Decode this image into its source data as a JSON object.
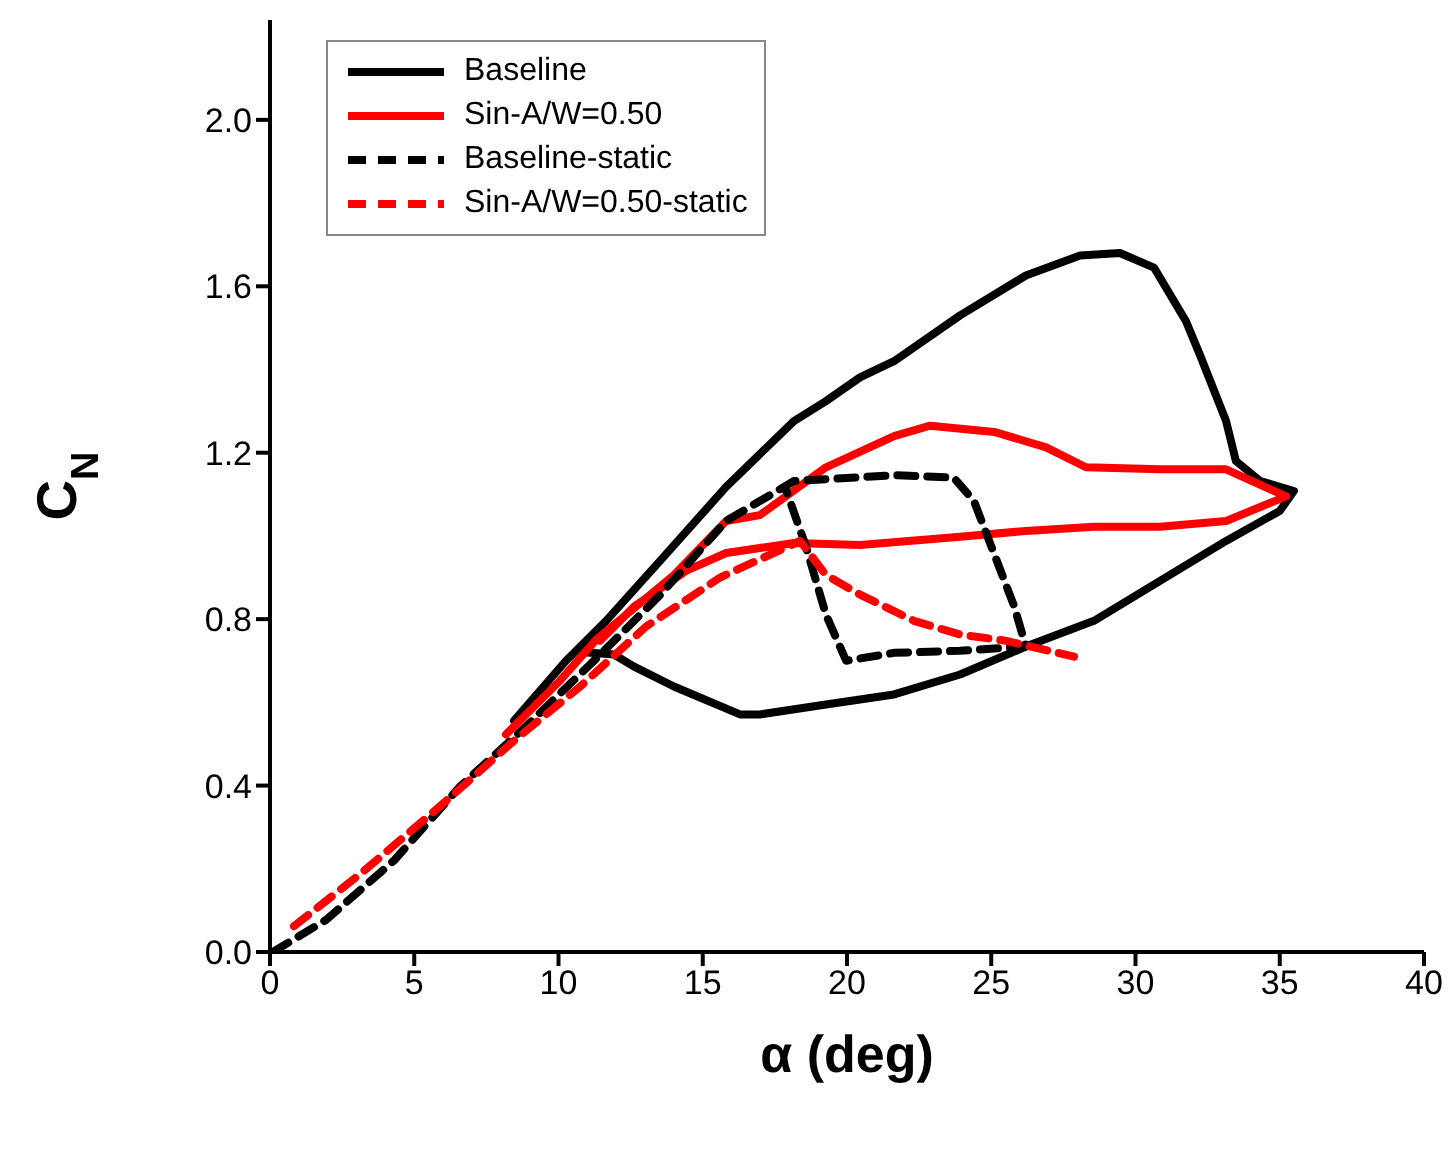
{
  "chart_data": {
    "type": "line",
    "xlabel": "α (deg)",
    "ylabel": "C$_{N}$",
    "xlim": [
      0,
      40
    ],
    "xticks": [
      0,
      5,
      10,
      15,
      20,
      25,
      30,
      35,
      40
    ],
    "ylim": [
      0,
      2.24
    ],
    "yticks": [
      {
        "value": 0,
        "label": "0.0"
      },
      {
        "value": 0.4,
        "label": "0.4"
      },
      {
        "value": 0.8,
        "label": "0.8"
      },
      {
        "value": 1.2,
        "label": "1.2"
      },
      {
        "value": 1.6,
        "label": "1.6"
      },
      {
        "value": 2.0,
        "label": "2.0"
      }
    ],
    "grid": false,
    "legend": "top left",
    "marker": "none",
    "series": [
      {
        "name": "Baseline",
        "color": "#000000",
        "line_style": "solid",
        "x": [
          8.46,
          10.26,
          11.65,
          13.52,
          15.81,
          18.16,
          19.27,
          20.45,
          21.63,
          23.92,
          26.2,
          28.08,
          29.46,
          30.64,
          31.75,
          32.24,
          33.14,
          33.48,
          34.32,
          35.49,
          35.0,
          33.14,
          30.85,
          28.56,
          26.2,
          23.92,
          21.63,
          19.27,
          16.98,
          16.29,
          14.0,
          12.62,
          11.92,
          11.0
        ],
        "values": [
          0.556,
          0.7,
          0.796,
          0.94,
          1.118,
          1.276,
          1.324,
          1.381,
          1.42,
          1.53,
          1.626,
          1.674,
          1.68,
          1.645,
          1.516,
          1.434,
          1.276,
          1.18,
          1.132,
          1.108,
          1.06,
          0.988,
          0.892,
          0.796,
          0.734,
          0.667,
          0.619,
          0.595,
          0.571,
          0.571,
          0.638,
          0.686,
          0.715,
          0.72
        ]
      },
      {
        "name": "Sin-A/W=0.50",
        "color": "#ff0000",
        "line_style": "solid",
        "x": [
          8.18,
          10.05,
          11.3,
          14.0,
          15.81,
          16.98,
          19.27,
          21.63,
          22.88,
          25.1,
          26.9,
          28.28,
          30.85,
          33.14,
          35.22,
          33.14,
          30.85,
          28.56,
          26.2,
          23.92,
          20.45,
          18.16,
          15.81,
          14.42,
          12.62,
          11.44
        ],
        "values": [
          0.523,
          0.652,
          0.75,
          0.906,
          1.036,
          1.05,
          1.165,
          1.24,
          1.265,
          1.25,
          1.213,
          1.165,
          1.16,
          1.16,
          1.095,
          1.036,
          1.022,
          1.022,
          1.012,
          0.998,
          0.978,
          0.983,
          0.959,
          0.916,
          0.83,
          0.748
        ]
      },
      {
        "name": "Baseline-static",
        "color": "#000000",
        "line_style": "dashed",
        "x": [
          0.1,
          1.94,
          4.3,
          6.59,
          8.87,
          11.23,
          13.52,
          15.81,
          18.16,
          21.63,
          23.7,
          24.4,
          25.8,
          26.2,
          23.9,
          21.63,
          19.97,
          19.27,
          18.58,
          17.89
        ],
        "values": [
          0,
          0.077,
          0.22,
          0.398,
          0.542,
          0.7,
          0.858,
          1.036,
          1.132,
          1.146,
          1.14,
          1.084,
          0.83,
          0.734,
          0.724,
          0.719,
          0.7,
          0.811,
          0.974,
          1.11
        ]
      },
      {
        "name": "Sin-A/W=0.50-static",
        "color": "#ff0000",
        "line_style": "dashed",
        "x": [
          0.83,
          3.12,
          5.89,
          8.46,
          10.75,
          13.03,
          15.6,
          18.37,
          19.27,
          20.45,
          22.32,
          23.92,
          25.5,
          27.87
        ],
        "values": [
          0.062,
          0.187,
          0.35,
          0.508,
          0.638,
          0.782,
          0.9,
          0.988,
          0.906,
          0.859,
          0.796,
          0.763,
          0.748,
          0.71
        ]
      }
    ]
  }
}
